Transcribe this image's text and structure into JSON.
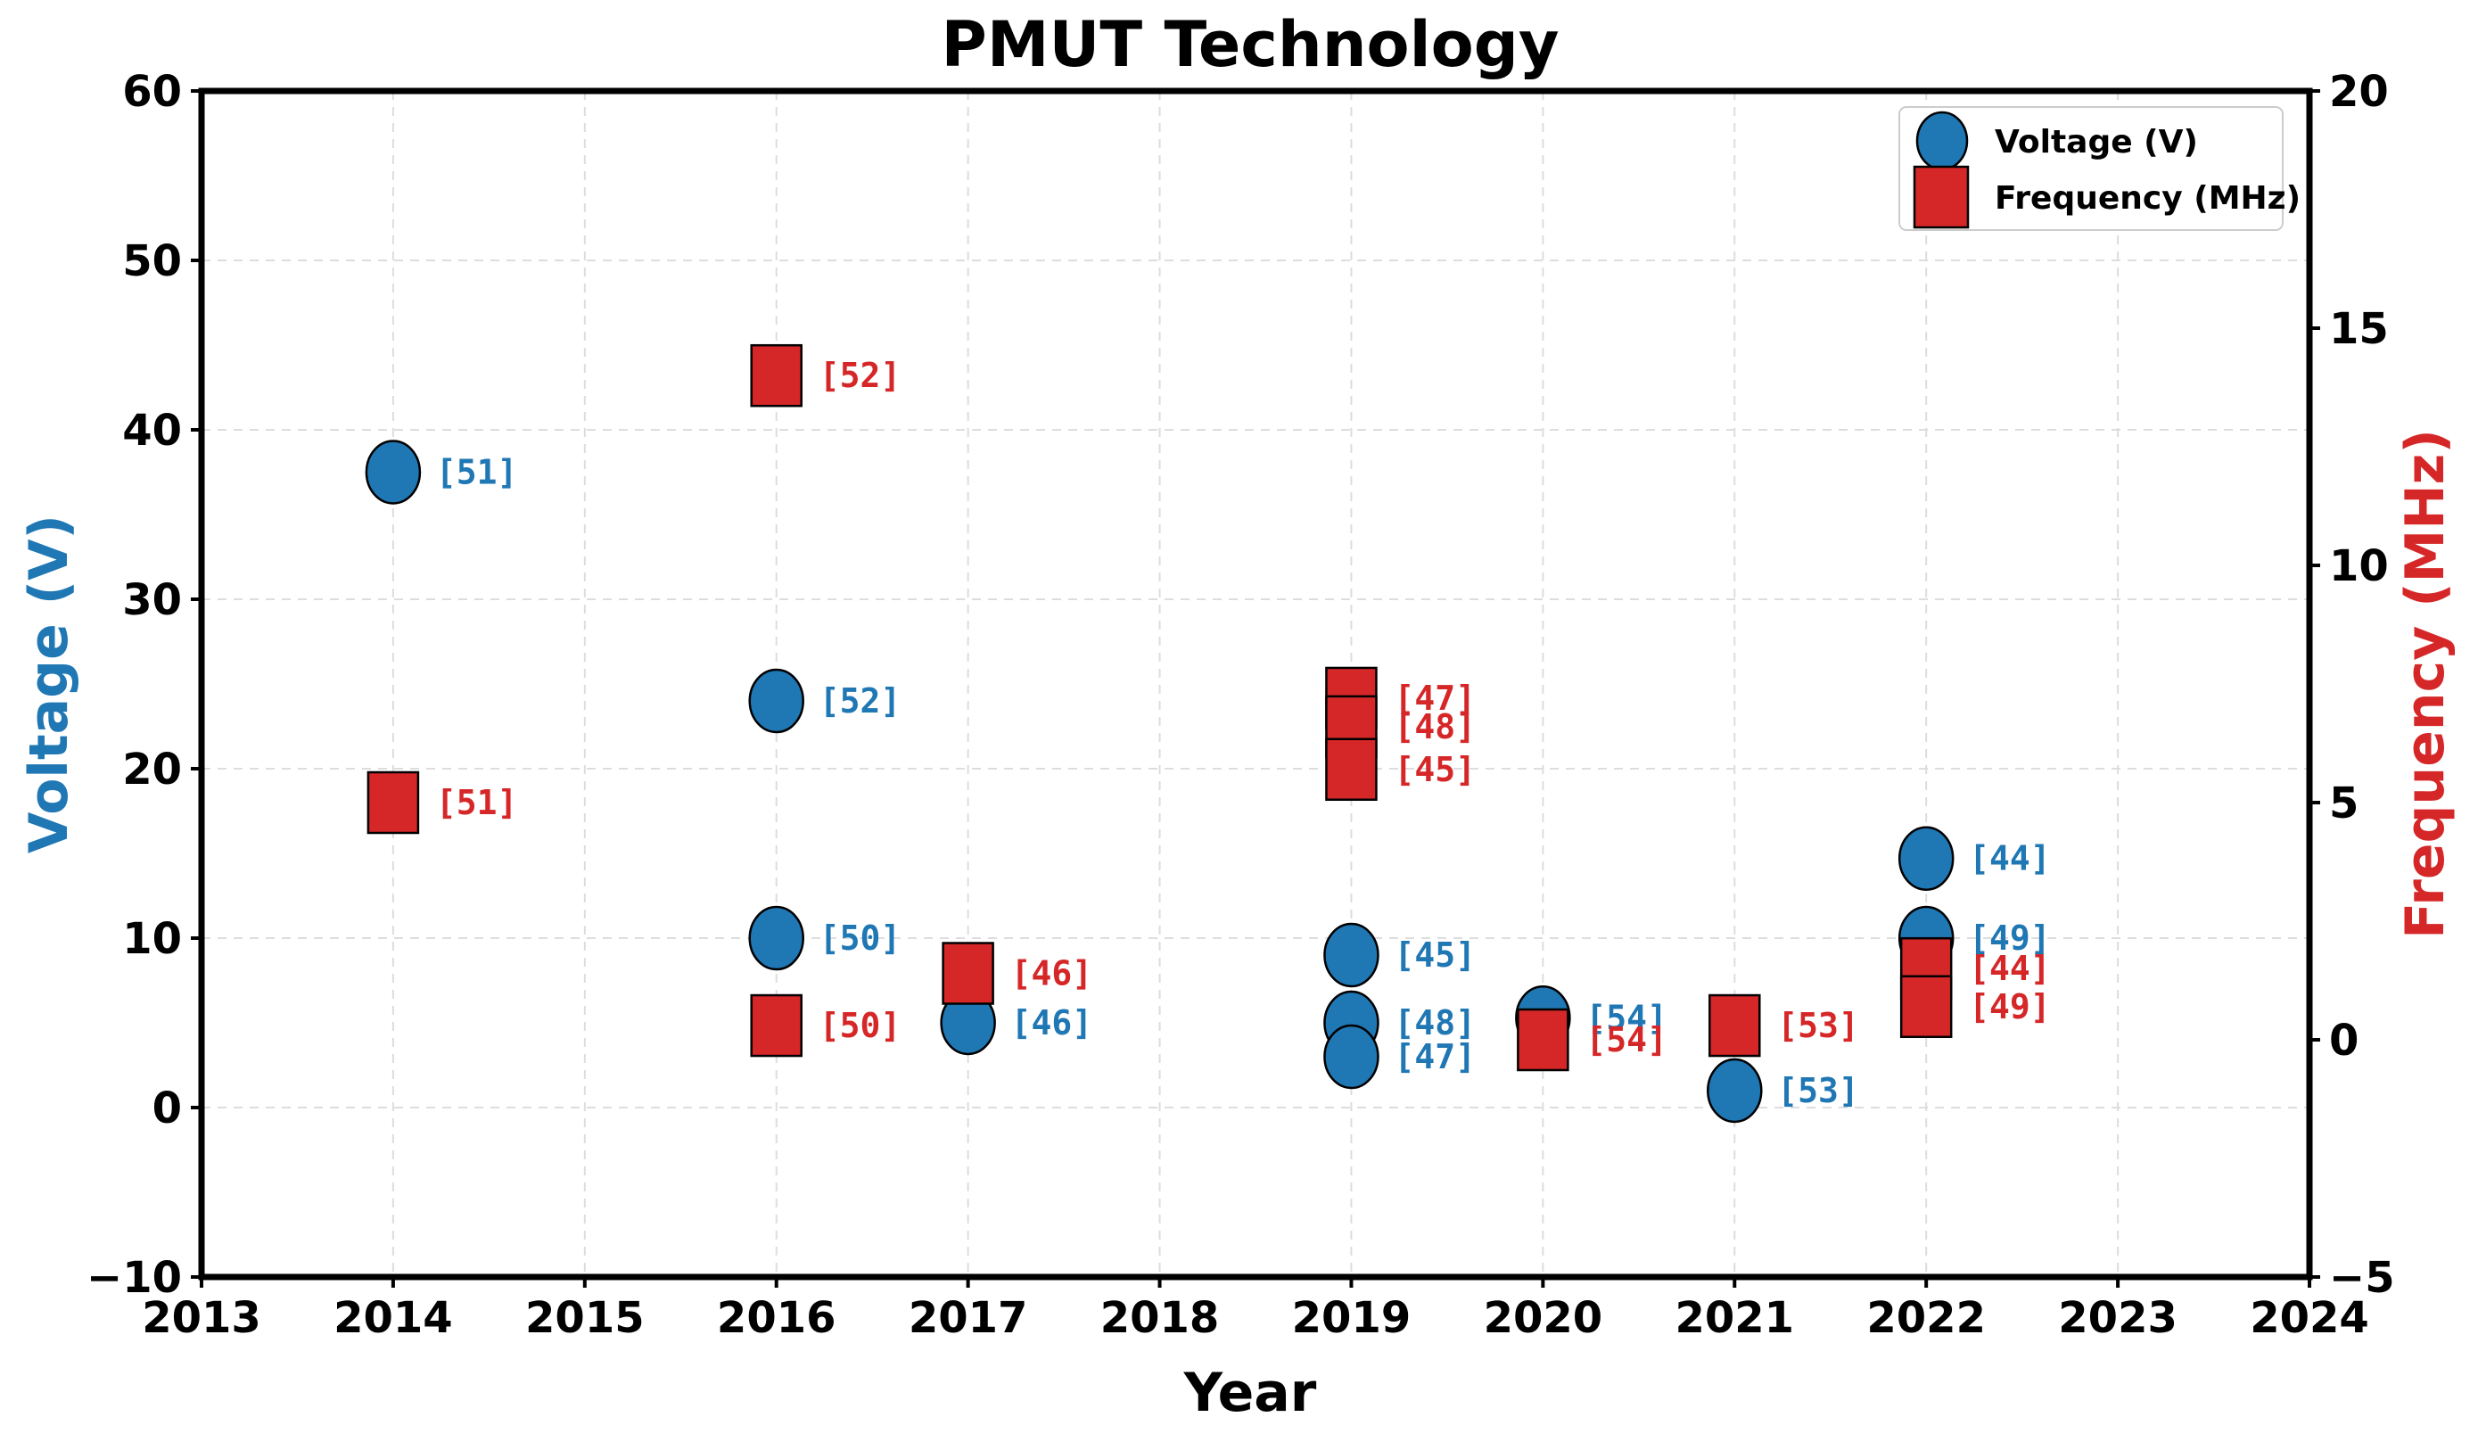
{
  "chart_data": {
    "type": "scatter",
    "title": "PMUT Technology",
    "xlabel": "Year",
    "ylabel": "Voltage (V)",
    "y2label": "Frequency (MHz)",
    "xlim": [
      2013,
      2024
    ],
    "ylim": [
      -10,
      60
    ],
    "y2lim": [
      -5,
      20
    ],
    "x_ticks": [
      "2013",
      "2014",
      "2015",
      "2016",
      "2017",
      "2018",
      "2019",
      "2020",
      "2021",
      "2022",
      "2023",
      "2024"
    ],
    "y_ticks": [
      "−10",
      "0",
      "10",
      "20",
      "30",
      "40",
      "50",
      "60"
    ],
    "y2_ticks": [
      "−5",
      "0",
      "5",
      "10",
      "15",
      "20"
    ],
    "grid": true,
    "legend_position": "top-right",
    "colors": {
      "voltage": "#1f77b4",
      "frequency": "#d62728"
    },
    "series": [
      {
        "name": "Voltage (V)",
        "axis": "left",
        "marker": "circle",
        "points": [
          {
            "x": 2014,
            "y": 37.5,
            "label": "[51]"
          },
          {
            "x": 2016,
            "y": 24,
            "label": "[52]"
          },
          {
            "x": 2016,
            "y": 10,
            "label": "[50]"
          },
          {
            "x": 2017,
            "y": 5,
            "label": "[46]"
          },
          {
            "x": 2019,
            "y": 9,
            "label": "[45]"
          },
          {
            "x": 2019,
            "y": 5,
            "label": "[48]"
          },
          {
            "x": 2019,
            "y": 3,
            "label": "[47]"
          },
          {
            "x": 2020,
            "y": 5.3,
            "label": "[54]"
          },
          {
            "x": 2021,
            "y": 1,
            "label": "[53]"
          },
          {
            "x": 2022,
            "y": 14.7,
            "label": "[44]"
          },
          {
            "x": 2022,
            "y": 10,
            "label": "[49]"
          }
        ]
      },
      {
        "name": "Frequency (MHz)",
        "axis": "right",
        "marker": "square",
        "points": [
          {
            "x": 2014,
            "y": 5,
            "label": "[51]"
          },
          {
            "x": 2016,
            "y": 14,
            "label": "[52]"
          },
          {
            "x": 2016,
            "y": 0.3,
            "label": "[50]"
          },
          {
            "x": 2017,
            "y": 1.4,
            "label": "[46]"
          },
          {
            "x": 2019,
            "y": 7.2,
            "label": "[47]"
          },
          {
            "x": 2019,
            "y": 6.6,
            "label": "[48]"
          },
          {
            "x": 2019,
            "y": 5.7,
            "label": "[45]"
          },
          {
            "x": 2020,
            "y": 0,
            "label": "[54]"
          },
          {
            "x": 2021,
            "y": 0.3,
            "label": "[53]"
          },
          {
            "x": 2022,
            "y": 1.5,
            "label": "[44]"
          },
          {
            "x": 2022,
            "y": 0.7,
            "label": "[49]"
          }
        ]
      }
    ]
  }
}
